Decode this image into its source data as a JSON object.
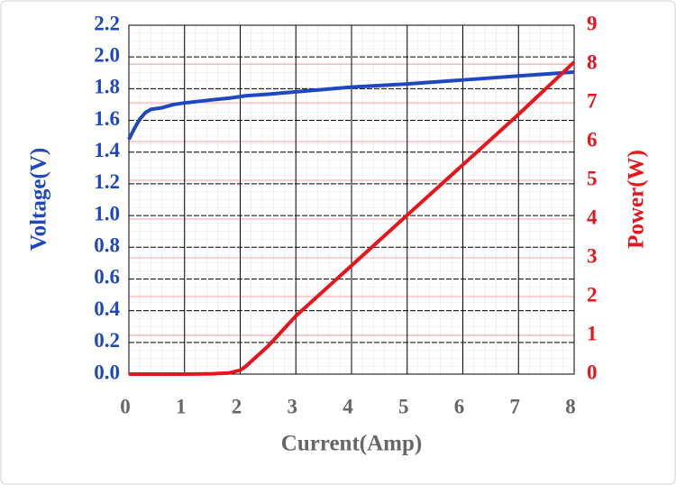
{
  "chart_data": {
    "type": "line",
    "x_label": "Current(Amp)",
    "y_label": "Voltage(V)",
    "y2_label": "Power(W)",
    "x": [
      0,
      0.1,
      0.2,
      0.3,
      0.4,
      0.6,
      0.8,
      1,
      1.5,
      1.8,
      2,
      2.1,
      2.5,
      3,
      3.5,
      4,
      5,
      6,
      7,
      8
    ],
    "series": [
      {
        "name": "Voltage",
        "color": "#1f48c0",
        "axis": "y",
        "values": [
          1.48,
          1.55,
          1.61,
          1.65,
          1.67,
          1.68,
          1.7,
          1.71,
          1.73,
          1.74,
          1.75,
          1.755,
          1.765,
          1.78,
          1.795,
          1.81,
          1.83,
          1.855,
          1.88,
          1.905
        ]
      },
      {
        "name": "Power",
        "color": "#e8141c",
        "axis": "y2",
        "values": [
          0,
          0,
          0,
          0,
          0,
          0,
          0,
          0,
          0.01,
          0.03,
          0.1,
          0.2,
          0.72,
          1.5,
          2.15,
          2.8,
          4.1,
          5.4,
          6.7,
          8.05
        ]
      }
    ],
    "xlim": [
      0,
      8
    ],
    "xticks": [
      0,
      1,
      2,
      3,
      4,
      5,
      6,
      7,
      8
    ],
    "ylim": [
      0,
      2.2
    ],
    "yticks": [
      {
        "value": 0,
        "label": "0.0"
      },
      0.2,
      0.4,
      0.6,
      0.8,
      {
        "value": 1,
        "label": "1.0"
      },
      1.2,
      1.4,
      1.6,
      1.8,
      {
        "value": 2,
        "label": "2.0"
      },
      2.2
    ],
    "y2lim": [
      0,
      9
    ],
    "y2ticks": [
      0,
      1,
      2,
      3,
      4,
      5,
      6,
      7,
      8,
      9
    ],
    "grid": true
  }
}
